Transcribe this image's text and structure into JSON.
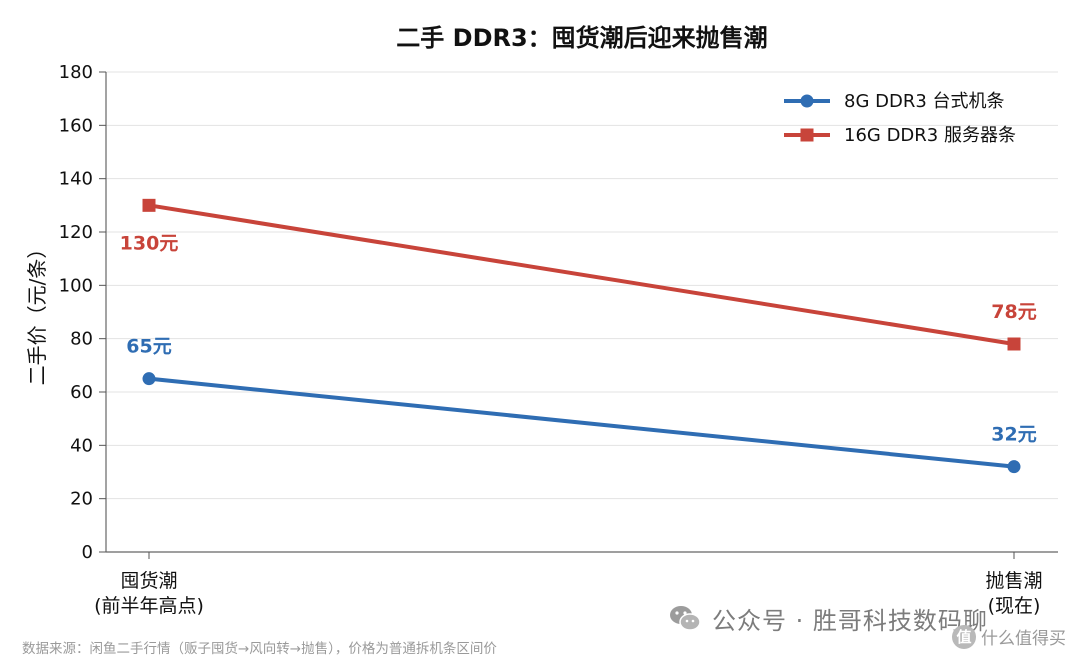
{
  "chart_data": {
    "type": "line",
    "title": "二手 DDR3：囤货潮后迎来抛售潮",
    "ylabel": "二手价（元/条）",
    "xlabel": "",
    "ylim": [
      0,
      180
    ],
    "yticks": [
      0,
      20,
      40,
      60,
      80,
      100,
      120,
      140,
      160,
      180
    ],
    "grid": true,
    "legend_position": "top-right",
    "categories": [
      {
        "line1": "囤货潮",
        "line2": "(前半年高点)"
      },
      {
        "line1": "抛售潮",
        "line2": "(现在)"
      }
    ],
    "series": [
      {
        "name": "8G DDR3 台式机条",
        "values": [
          65,
          32
        ],
        "labels": [
          "65元",
          "32元"
        ],
        "color": "#2f6db3",
        "marker": "circle"
      },
      {
        "name": "16G DDR3 服务器条",
        "values": [
          130,
          78
        ],
        "labels": [
          "130元",
          "78元"
        ],
        "color": "#c8443a",
        "marker": "square"
      }
    ]
  },
  "source_note": "数据来源：闲鱼二手行情（贩子囤货→风向转→抛售），价格为普通拆机条区间价",
  "watermark": {
    "text": "公众号 · 胜哥科技数码聊",
    "sub": "什么值得买",
    "sub_badge": "值"
  }
}
